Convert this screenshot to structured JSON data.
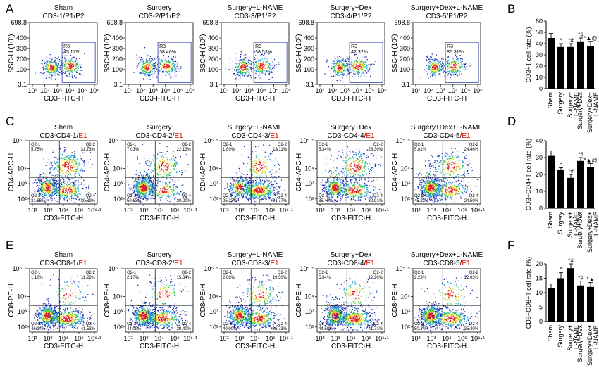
{
  "panel_letters": [
    "A",
    "B",
    "C",
    "D",
    "E",
    "F"
  ],
  "flow_rows": [
    {
      "letter": "A",
      "type": "ssc",
      "ylabel": "SSC-H (10³)",
      "xlabel": "CD3-FITC-H",
      "yticks": [
        "698.8",
        "400",
        "300",
        "200",
        "100",
        "3.1"
      ],
      "xticks": [
        "10¹",
        "10²",
        "10³",
        "10⁴",
        "10⁵",
        "10⁶"
      ],
      "plots": [
        {
          "group": "Sham",
          "sample": "CD3-1/P1/P2",
          "gate_name": "R3",
          "gate_pct": "45.17%"
        },
        {
          "group": "Surgery",
          "sample": "CD3-2/P1/P2",
          "gate_name": "R3",
          "gate_pct": "38.46%"
        },
        {
          "group": "Surgery+L-NAME",
          "sample": "CD3-3/P1/P2",
          "gate_name": "R3",
          "gate_pct": "38.53%"
        },
        {
          "group": "Surgery+Dex",
          "sample": "CD3-4/P1/P2",
          "gate_name": "R3",
          "gate_pct": "42.32%"
        },
        {
          "group": "Surgery+Dex+L-NAME",
          "sample": "CD3-5/P1/P2",
          "gate_name": "R3",
          "gate_pct": "36.31%"
        }
      ]
    },
    {
      "letter": "C",
      "type": "quad",
      "ylabel": "CD4-APC-H",
      "xlabel": "CD3-FITC-H",
      "yticks": [
        "10⁵·⁵",
        "10⁴",
        "10³",
        "10²"
      ],
      "xticks": [
        "10²",
        "10³",
        "10⁴",
        "10⁵",
        "10⁶·¹"
      ],
      "plots": [
        {
          "group": "Sham",
          "sample": "CD3-CD4-1/",
          "gate": "E1",
          "q": [
            "Q2-1",
            "Q2-2",
            "Q2-3",
            "Q2-4"
          ],
          "pct": [
            "5.75%",
            "31.73%",
            "31.63%",
            "30.89%"
          ]
        },
        {
          "group": "Surgery",
          "sample": "CD3-CD4-2/",
          "gate": "E1",
          "q": [
            "Q2-1",
            "Q2-2",
            "Q2-3",
            "Q2-4"
          ],
          "pct": [
            "7.03%",
            "22.13%",
            "50.63%",
            "20.20%"
          ]
        },
        {
          "group": "Surgery+L-NAME",
          "sample": "CD3-CD4-3/",
          "gate": "E1",
          "q": [
            "Q2-1",
            "Q2-2",
            "Q2-3",
            "Q2-4"
          ],
          "pct": [
            "1.89%",
            "18.11%",
            "25.23%",
            "54.77%"
          ]
        },
        {
          "group": "Surgery+Dex",
          "sample": "CD3-CD4-4/",
          "gate": "E1",
          "q": [
            "Q2-1",
            "Q2-2",
            "Q2-3",
            "Q2-4"
          ],
          "pct": [
            "5.34%",
            "28.30%",
            "35.45%",
            "30.91%"
          ]
        },
        {
          "group": "Surgery+Dex+L-NAME",
          "sample": "CD3-CD4-5/",
          "gate": "E1",
          "q": [
            "Q2-1",
            "Q2-2",
            "Q2-3",
            "Q2-4"
          ],
          "pct": [
            "5.81%",
            "24.46%",
            "45.23%",
            "24.50%"
          ]
        }
      ]
    },
    {
      "letter": "E",
      "type": "quad",
      "ylabel": "CD8-PE-H",
      "xlabel": "CD3-FITC-H",
      "yticks": [
        "10⁵·⁵",
        "10⁴",
        "10³",
        "10²"
      ],
      "xticks": [
        "10²",
        "10³",
        "10⁴",
        "10⁵",
        "10⁶·¹"
      ],
      "plots": [
        {
          "group": "Sham",
          "sample": "CD3-CD8-1/",
          "gate": "E1",
          "q": [
            "Q2-1",
            "Q2-2",
            "Q2-3",
            "Q2-4"
          ],
          "pct": [
            "1.10%",
            "11.22%",
            "46.14%",
            "41.53%"
          ]
        },
        {
          "group": "Surgery",
          "sample": "CD3-CD8-2/",
          "gate": "E1",
          "q": [
            "Q2-1",
            "Q2-2",
            "Q2-3",
            "Q2-4"
          ],
          "pct": [
            "2.17%",
            "15.34%",
            "44.09%",
            "38.40%"
          ]
        },
        {
          "group": "Surgery+L-NAME",
          "sample": "CD3-CD8-3/",
          "gate": "E1",
          "q": [
            "Q2-1",
            "Q2-2",
            "Q2-3",
            "Q2-4"
          ],
          "pct": [
            "2.88%",
            "19.50%",
            "40.90%",
            "36.73%"
          ]
        },
        {
          "group": "Surgery+Dex",
          "sample": "CD3-CD8-4/",
          "gate": "E1",
          "q": [
            "Q2-1",
            "Q2-2",
            "Q2-3",
            "Q2-4"
          ],
          "pct": [
            "5.34%",
            "12.20%",
            "44.58%",
            "41.71%"
          ]
        },
        {
          "group": "Surgery+Dex+L-NAME",
          "sample": "CD3-CD8-5/",
          "gate": "E1",
          "q": [
            "Q2-1",
            "Q2-2",
            "Q2-3",
            "Q2-4"
          ],
          "pct": [
            "2.23%",
            "12.03%",
            "50.34%",
            "35.40%"
          ]
        }
      ]
    }
  ],
  "colors": {
    "gate_text": "#3b3bb0",
    "gate_box": "#2b3fa0",
    "accent_red": "#e00000",
    "bar": "#000000"
  },
  "chart_data": [
    {
      "type": "bar",
      "letter": "B",
      "ylabel": "CD3+T cell rate (%)",
      "yticks": [
        0,
        10,
        20,
        30,
        40,
        50,
        60
      ],
      "ylim": [
        0,
        60
      ],
      "categories": [
        "Sham",
        "Surgery",
        "Surgery+\nL-NAME",
        "Surgery+Dex",
        "Surgery+Dex+\nL-NAME"
      ],
      "values": [
        45,
        37,
        37,
        42,
        38
      ],
      "errors": [
        4,
        3,
        3,
        3,
        4
      ],
      "annotations": [
        "",
        "*",
        "*,#",
        "*,#",
        "*,▲,@"
      ]
    },
    {
      "type": "bar",
      "letter": "D",
      "ylabel": "CD3+CD4+T cell rate (%)",
      "yticks": [
        0,
        10,
        20,
        30,
        40
      ],
      "ylim": [
        0,
        40
      ],
      "categories": [
        "Sham",
        "Surgery",
        "Surgery+\nL-NAME",
        "Surgery+Dex",
        "Surgery+Dex+\nL-NAME"
      ],
      "values": [
        31,
        22.5,
        18,
        28,
        24.5
      ],
      "errors": [
        3,
        1.5,
        2,
        2,
        2
      ],
      "annotations": [
        "",
        "*",
        "*,#",
        "*,#",
        "*,▲,@"
      ]
    },
    {
      "type": "bar",
      "letter": "F",
      "ylabel": "CD3+CD8+T cell rate (%)",
      "yticks": [
        0,
        5,
        10,
        15,
        20
      ],
      "ylim": [
        0,
        20
      ],
      "categories": [
        "Sham",
        "Surgery",
        "Surgery+\nL-NAME",
        "Surgery+Dex",
        "Surgery+Dex+\nL-NAME"
      ],
      "values": [
        11.5,
        15,
        18.5,
        12.5,
        12
      ],
      "errors": [
        1.5,
        2,
        1.5,
        1.5,
        1.5
      ],
      "annotations": [
        "",
        "*",
        "*,#",
        "*,#",
        "*,▲"
      ]
    }
  ]
}
